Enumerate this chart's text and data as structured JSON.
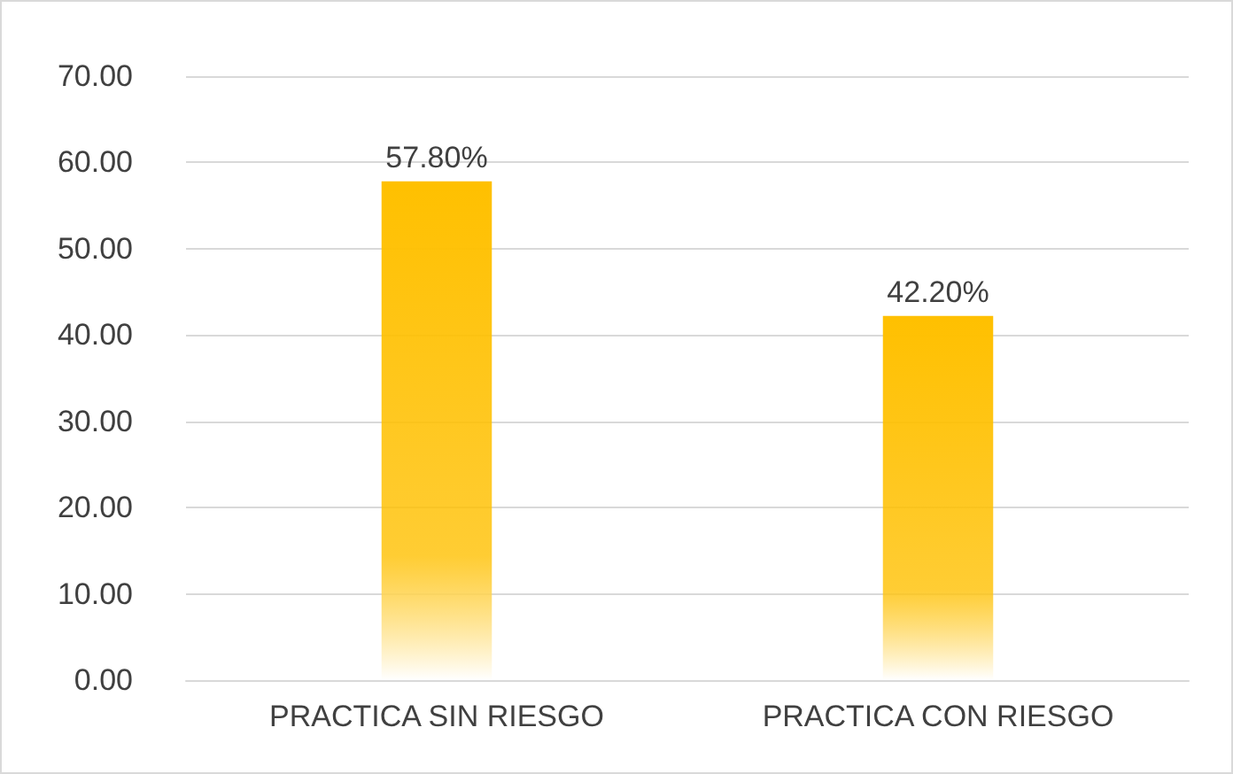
{
  "chart_data": {
    "type": "bar",
    "categories": [
      "PRACTICA SIN RIESGO",
      "PRACTICA CON RIESGO"
    ],
    "values": [
      57.8,
      42.2
    ],
    "value_labels": [
      "57.80%",
      "42.20%"
    ],
    "color": "#ffc000",
    "ylim": [
      0,
      70
    ],
    "yticks": [
      {
        "value": 0,
        "label": "0.00"
      },
      {
        "value": 10,
        "label": "10.00"
      },
      {
        "value": 20,
        "label": "20.00"
      },
      {
        "value": 30,
        "label": "30.00"
      },
      {
        "value": 40,
        "label": "40.00"
      },
      {
        "value": 50,
        "label": "50.00"
      },
      {
        "value": 60,
        "label": "60.00"
      },
      {
        "value": 70,
        "label": "70.00"
      }
    ],
    "grid": "y"
  }
}
